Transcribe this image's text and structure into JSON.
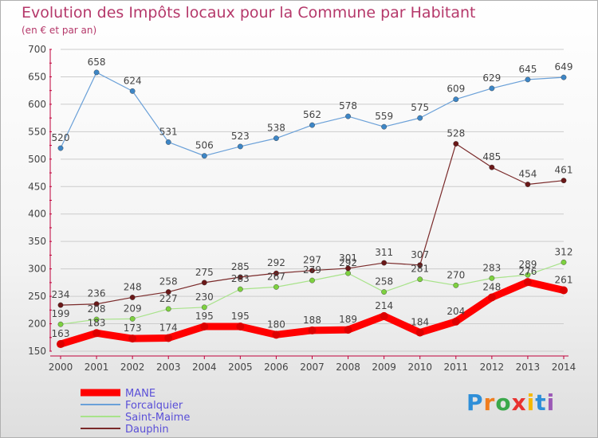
{
  "title": "Evolution des Impôts locaux pour la Commune par Habitant",
  "subtitle": "(en € et par an)",
  "logo": "Proxiti",
  "colors": {
    "title": "#b5386a",
    "axis": "#c0003a",
    "grid": "#cccccc",
    "text": "#444444"
  },
  "chart_data": {
    "type": "line",
    "x": [
      "2000",
      "2001",
      "2002",
      "2003",
      "2004",
      "2005",
      "2006",
      "2007",
      "2008",
      "2009",
      "2010",
      "2011",
      "2012",
      "2013",
      "2014"
    ],
    "ylim": [
      150,
      700
    ],
    "yticks": [
      150,
      200,
      250,
      300,
      350,
      400,
      450,
      500,
      550,
      600,
      650,
      700
    ],
    "grid": true,
    "legend_position": "bottom-left",
    "series": [
      {
        "name": "MANE",
        "color": "#ff0000",
        "marker": "#dd0000",
        "width": 9,
        "values": [
          163,
          183,
          173,
          174,
          195,
          195,
          180,
          188,
          189,
          214,
          184,
          204,
          248,
          276,
          261
        ]
      },
      {
        "name": "Forcalquier",
        "color": "#6aa0d8",
        "marker": "#3d86c6",
        "width": 1.2,
        "values": [
          520,
          658,
          624,
          531,
          506,
          523,
          538,
          562,
          578,
          559,
          575,
          609,
          629,
          645,
          649
        ]
      },
      {
        "name": "Saint-Maime",
        "color": "#a8e38a",
        "marker": "#7dd13f",
        "width": 1.2,
        "values": [
          199,
          208,
          209,
          227,
          230,
          263,
          267,
          279,
          292,
          258,
          281,
          270,
          283,
          289,
          312
        ]
      },
      {
        "name": "Dauphin",
        "color": "#7a2a2a",
        "marker": "#6a1818",
        "width": 1.2,
        "values": [
          234,
          236,
          248,
          258,
          275,
          285,
          292,
          297,
          301,
          311,
          307,
          528,
          485,
          454,
          461
        ]
      }
    ]
  }
}
